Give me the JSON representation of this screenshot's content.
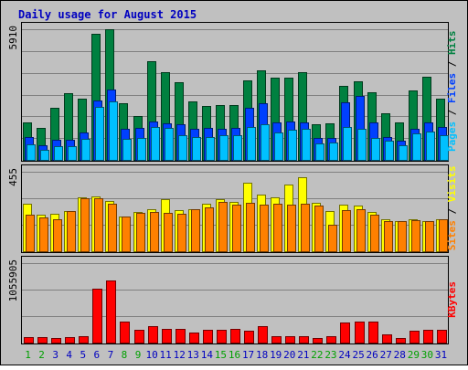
{
  "chart_data": {
    "type": "bar",
    "title": "Daily usage for August 2015",
    "categories": [
      "1",
      "2",
      "3",
      "4",
      "5",
      "6",
      "7",
      "8",
      "9",
      "10",
      "11",
      "12",
      "13",
      "14",
      "15",
      "16",
      "17",
      "18",
      "19",
      "20",
      "21",
      "22",
      "23",
      "24",
      "25",
      "26",
      "27",
      "28",
      "29",
      "30",
      "31"
    ],
    "weekend_days": [
      "1",
      "2",
      "8",
      "9",
      "15",
      "16",
      "22",
      "23",
      "29",
      "30"
    ],
    "panels": [
      {
        "id": "pages-files-hits",
        "ytick": "5910",
        "ylim": [
          0,
          5910
        ],
        "legend": [
          "Pages",
          "Files",
          "Hits"
        ],
        "series": [
          {
            "name": "Hits",
            "color": "#008040",
            "values": [
              1700,
              1450,
              2350,
              3000,
              2750,
              5700,
              5900,
              2550,
              2000,
              4450,
              3950,
              3500,
              2650,
              2450,
              2500,
              2500,
              3600,
              4050,
              3700,
              3700,
              3950,
              1600,
              1650,
              3350,
              3550,
              3050,
              2100,
              1700,
              3150,
              3750,
              2750
            ]
          },
          {
            "name": "Files",
            "color": "#0040ff",
            "values": [
              1050,
              650,
              900,
              900,
              1250,
              2700,
              3200,
              1400,
              1450,
              1750,
              1650,
              1600,
              1400,
              1450,
              1400,
              1450,
              2350,
              2550,
              1700,
              1750,
              1700,
              1000,
              1000,
              2600,
              2900,
              1700,
              1050,
              850,
              1400,
              1700,
              1500
            ]
          },
          {
            "name": "Pages",
            "color": "#00c0ff",
            "values": [
              700,
              450,
              600,
              600,
              950,
              2400,
              2650,
              950,
              1000,
              1500,
              1450,
              1100,
              1050,
              1050,
              1100,
              1100,
              1500,
              1600,
              1250,
              1350,
              1400,
              750,
              800,
              1500,
              1400,
              1000,
              850,
              650,
              1200,
              1300,
              1100
            ]
          }
        ]
      },
      {
        "id": "visits-sites",
        "ytick": "455",
        "ylim": [
          0,
          455
        ],
        "legend": [
          "Sites",
          "Visits"
        ],
        "series": [
          {
            "name": "Visits",
            "color": "#ffff00",
            "values": [
              270,
              210,
              215,
              230,
              310,
              315,
              290,
              200,
              225,
              240,
              300,
              235,
              240,
              270,
              300,
              285,
              390,
              325,
              310,
              380,
              425,
              275,
              230,
              265,
              260,
              225,
              185,
              175,
              185,
              175,
              185
            ]
          },
          {
            "name": "Sites",
            "color": "#ff8000",
            "values": [
              210,
              195,
              185,
              230,
              305,
              305,
              270,
              200,
              220,
              225,
              220,
              215,
              240,
              250,
              285,
              265,
              275,
              265,
              270,
              265,
              270,
              260,
              150,
              235,
              240,
              210,
              170,
              170,
              180,
              170,
              185
            ]
          }
        ]
      },
      {
        "id": "kbytes",
        "ytick": "1055905",
        "ylim": [
          0,
          1055905
        ],
        "legend": [
          "KBytes"
        ],
        "series": [
          {
            "name": "KBytes",
            "color": "#ff0000",
            "values": [
              70000,
              70000,
              55000,
              70000,
              90000,
              720000,
              830000,
              280000,
              170000,
              215000,
              185000,
              185000,
              135000,
              170000,
              170000,
              185000,
              160000,
              215000,
              85000,
              85000,
              85000,
              65000,
              85000,
              265000,
              285000,
              285000,
              115000,
              65000,
              160000,
              170000,
              170000
            ]
          }
        ]
      }
    ]
  },
  "colors": {
    "background": "#c0c0c0",
    "title": "#0000c0",
    "weekday_label": "#0000c0",
    "weekend_label": "#00a000",
    "gridline": "#808080"
  }
}
